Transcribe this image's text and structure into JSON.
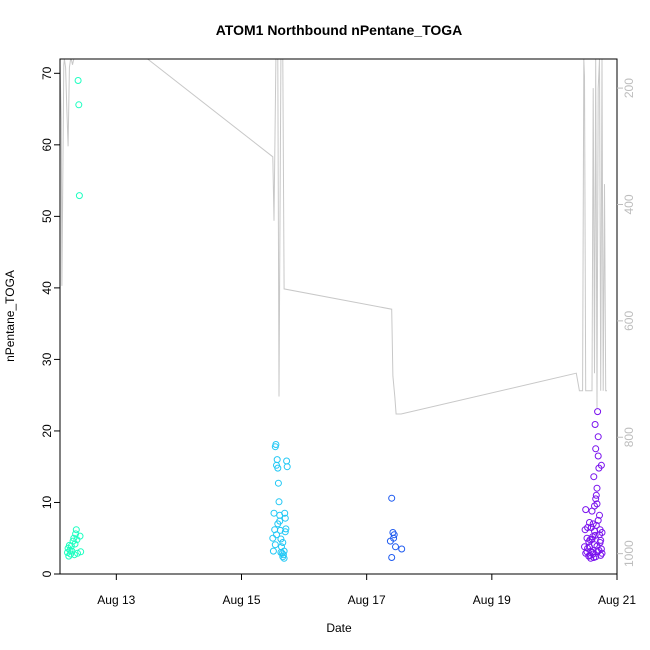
{
  "chart_data": {
    "type": "scatter",
    "title": "ATOM1 Northbound nPentane_TOGA",
    "xlabel": "Date",
    "ylabel": "nPentane_TOGA",
    "ylim": [
      0,
      72
    ],
    "y_ticks": [
      0,
      10,
      20,
      30,
      40,
      50,
      60,
      70
    ],
    "x_range_days": [
      12.1,
      21.0
    ],
    "x_ticks": [
      {
        "day": 13,
        "label": "Aug 13"
      },
      {
        "day": 15,
        "label": "Aug 15"
      },
      {
        "day": 17,
        "label": "Aug 17"
      },
      {
        "day": 19,
        "label": "Aug 19"
      },
      {
        "day": 21,
        "label": "Aug 21"
      }
    ],
    "y2_axis": {
      "description": "pressure (reversed)",
      "range": [
        1035,
        150
      ],
      "ticks": [
        200,
        400,
        600,
        800,
        1000
      ],
      "color": "#bdbdbd"
    },
    "grid": false,
    "legend": "none",
    "scatter_groups": [
      {
        "color": "#1dffc1",
        "points": [
          [
            12.22,
            3.0
          ],
          [
            12.23,
            3.6
          ],
          [
            12.24,
            2.5
          ],
          [
            12.25,
            4.0
          ],
          [
            12.26,
            3.3
          ],
          [
            12.27,
            2.8
          ],
          [
            12.28,
            3.9
          ],
          [
            12.29,
            3.2
          ],
          [
            12.31,
            4.6
          ],
          [
            12.32,
            5.0
          ],
          [
            12.33,
            2.7
          ],
          [
            12.34,
            4.2
          ],
          [
            12.35,
            5.6
          ],
          [
            12.36,
            6.2
          ],
          [
            12.37,
            4.8
          ],
          [
            12.38,
            2.9
          ],
          [
            12.39,
            69.0
          ],
          [
            12.4,
            65.6
          ],
          [
            12.41,
            52.9
          ],
          [
            12.42,
            5.3
          ],
          [
            12.43,
            3.1
          ]
        ]
      },
      {
        "color": "#22c8f5",
        "points": [
          [
            15.5,
            5.0
          ],
          [
            15.51,
            3.2
          ],
          [
            15.52,
            8.5
          ],
          [
            15.53,
            6.2
          ],
          [
            15.54,
            17.8
          ],
          [
            15.55,
            18.1
          ],
          [
            15.56,
            15.2
          ],
          [
            15.57,
            16.0
          ],
          [
            15.58,
            14.8
          ],
          [
            15.59,
            12.7
          ],
          [
            15.6,
            10.1
          ],
          [
            15.61,
            7.4
          ],
          [
            15.62,
            6.1
          ],
          [
            15.63,
            4.9
          ],
          [
            15.64,
            3.8
          ],
          [
            15.65,
            2.9
          ],
          [
            15.66,
            2.4
          ],
          [
            15.67,
            2.7
          ],
          [
            15.68,
            3.2
          ],
          [
            15.69,
            8.5
          ],
          [
            15.7,
            7.8
          ],
          [
            15.71,
            6.3
          ],
          [
            15.72,
            15.8
          ],
          [
            15.73,
            15.0
          ],
          [
            15.54,
            4.1
          ],
          [
            15.56,
            5.5
          ],
          [
            15.58,
            7.0
          ],
          [
            15.61,
            8.2
          ],
          [
            15.63,
            3.0
          ],
          [
            15.66,
            4.4
          ],
          [
            15.68,
            2.2
          ],
          [
            15.7,
            5.9
          ]
        ]
      },
      {
        "color": "#1f5bf0",
        "points": [
          [
            17.38,
            4.6
          ],
          [
            17.4,
            10.6
          ],
          [
            17.42,
            5.8
          ],
          [
            17.44,
            5.5
          ],
          [
            17.46,
            3.8
          ],
          [
            17.4,
            2.3
          ],
          [
            17.43,
            5.0
          ],
          [
            17.56,
            3.5
          ]
        ]
      },
      {
        "color": "#7a12ee",
        "points": [
          [
            20.48,
            3.8
          ],
          [
            20.5,
            9.0
          ],
          [
            20.52,
            3.1
          ],
          [
            20.53,
            6.5
          ],
          [
            20.55,
            2.5
          ],
          [
            20.56,
            7.2
          ],
          [
            20.57,
            4.8
          ],
          [
            20.58,
            3.2
          ],
          [
            20.6,
            8.8
          ],
          [
            20.61,
            5.2
          ],
          [
            20.62,
            2.8
          ],
          [
            20.63,
            13.6
          ],
          [
            20.64,
            6.0
          ],
          [
            20.65,
            20.9
          ],
          [
            20.66,
            17.5
          ],
          [
            20.67,
            11.0
          ],
          [
            20.68,
            9.8
          ],
          [
            20.69,
            22.7
          ],
          [
            20.7,
            19.2
          ],
          [
            20.71,
            14.8
          ],
          [
            20.72,
            8.2
          ],
          [
            20.73,
            4.4
          ],
          [
            20.74,
            2.6
          ],
          [
            20.75,
            3.5
          ],
          [
            20.76,
            5.8
          ],
          [
            20.55,
            4.5
          ],
          [
            20.58,
            2.2
          ],
          [
            20.61,
            3.0
          ],
          [
            20.64,
            4.1
          ],
          [
            20.66,
            2.4
          ],
          [
            20.68,
            3.9
          ],
          [
            20.7,
            7.5
          ],
          [
            20.72,
            5.5
          ],
          [
            20.5,
            2.9
          ],
          [
            20.53,
            3.6
          ],
          [
            20.57,
            2.6
          ],
          [
            20.6,
            4.9
          ],
          [
            20.63,
            2.3
          ],
          [
            20.67,
            6.8
          ],
          [
            20.71,
            3.3
          ],
          [
            20.74,
            4.7
          ],
          [
            20.76,
            2.9
          ],
          [
            20.49,
            6.2
          ],
          [
            20.52,
            5.0
          ],
          [
            20.56,
            3.8
          ],
          [
            20.59,
            6.5
          ],
          [
            20.62,
            7.0
          ],
          [
            20.65,
            5.4
          ],
          [
            20.69,
            3.1
          ],
          [
            20.73,
            6.2
          ],
          [
            20.75,
            15.2
          ],
          [
            20.66,
            10.5
          ],
          [
            20.7,
            16.5
          ],
          [
            20.64,
            9.5
          ],
          [
            20.68,
            12.0
          ]
        ]
      }
    ],
    "pressure_line": {
      "color": "#c8c8c8",
      "points": [
        [
          12.1,
          160
        ],
        [
          12.12,
          255
        ],
        [
          12.13,
          540
        ],
        [
          12.14,
          420
        ],
        [
          12.16,
          160
        ],
        [
          12.17,
          150
        ],
        [
          12.19,
          165
        ],
        [
          12.21,
          240
        ],
        [
          12.23,
          300
        ],
        [
          12.25,
          165
        ],
        [
          12.27,
          150
        ],
        [
          12.28,
          150
        ],
        [
          12.3,
          160
        ],
        [
          12.32,
          150
        ],
        [
          13.5,
          150
        ],
        [
          15.5,
          318
        ],
        [
          15.52,
          428
        ],
        [
          15.55,
          150
        ],
        [
          15.58,
          150
        ],
        [
          15.6,
          730
        ],
        [
          15.63,
          150
        ],
        [
          15.66,
          150
        ],
        [
          15.68,
          545
        ],
        [
          17.4,
          580
        ],
        [
          17.42,
          695
        ],
        [
          17.45,
          730
        ],
        [
          17.47,
          760
        ],
        [
          17.55,
          760
        ],
        [
          20.35,
          690
        ],
        [
          20.4,
          720
        ],
        [
          20.45,
          720
        ],
        [
          20.47,
          150
        ],
        [
          20.48,
          180
        ],
        [
          20.5,
          720
        ],
        [
          20.55,
          720
        ],
        [
          20.6,
          720
        ],
        [
          20.62,
          200
        ],
        [
          20.64,
          690
        ],
        [
          20.66,
          150
        ],
        [
          20.68,
          750
        ],
        [
          20.7,
          200
        ],
        [
          20.72,
          150
        ],
        [
          20.74,
          720
        ],
        [
          20.76,
          150
        ],
        [
          20.78,
          720
        ],
        [
          20.8,
          365
        ],
        [
          20.82,
          720
        ],
        [
          20.84,
          720
        ]
      ]
    }
  }
}
